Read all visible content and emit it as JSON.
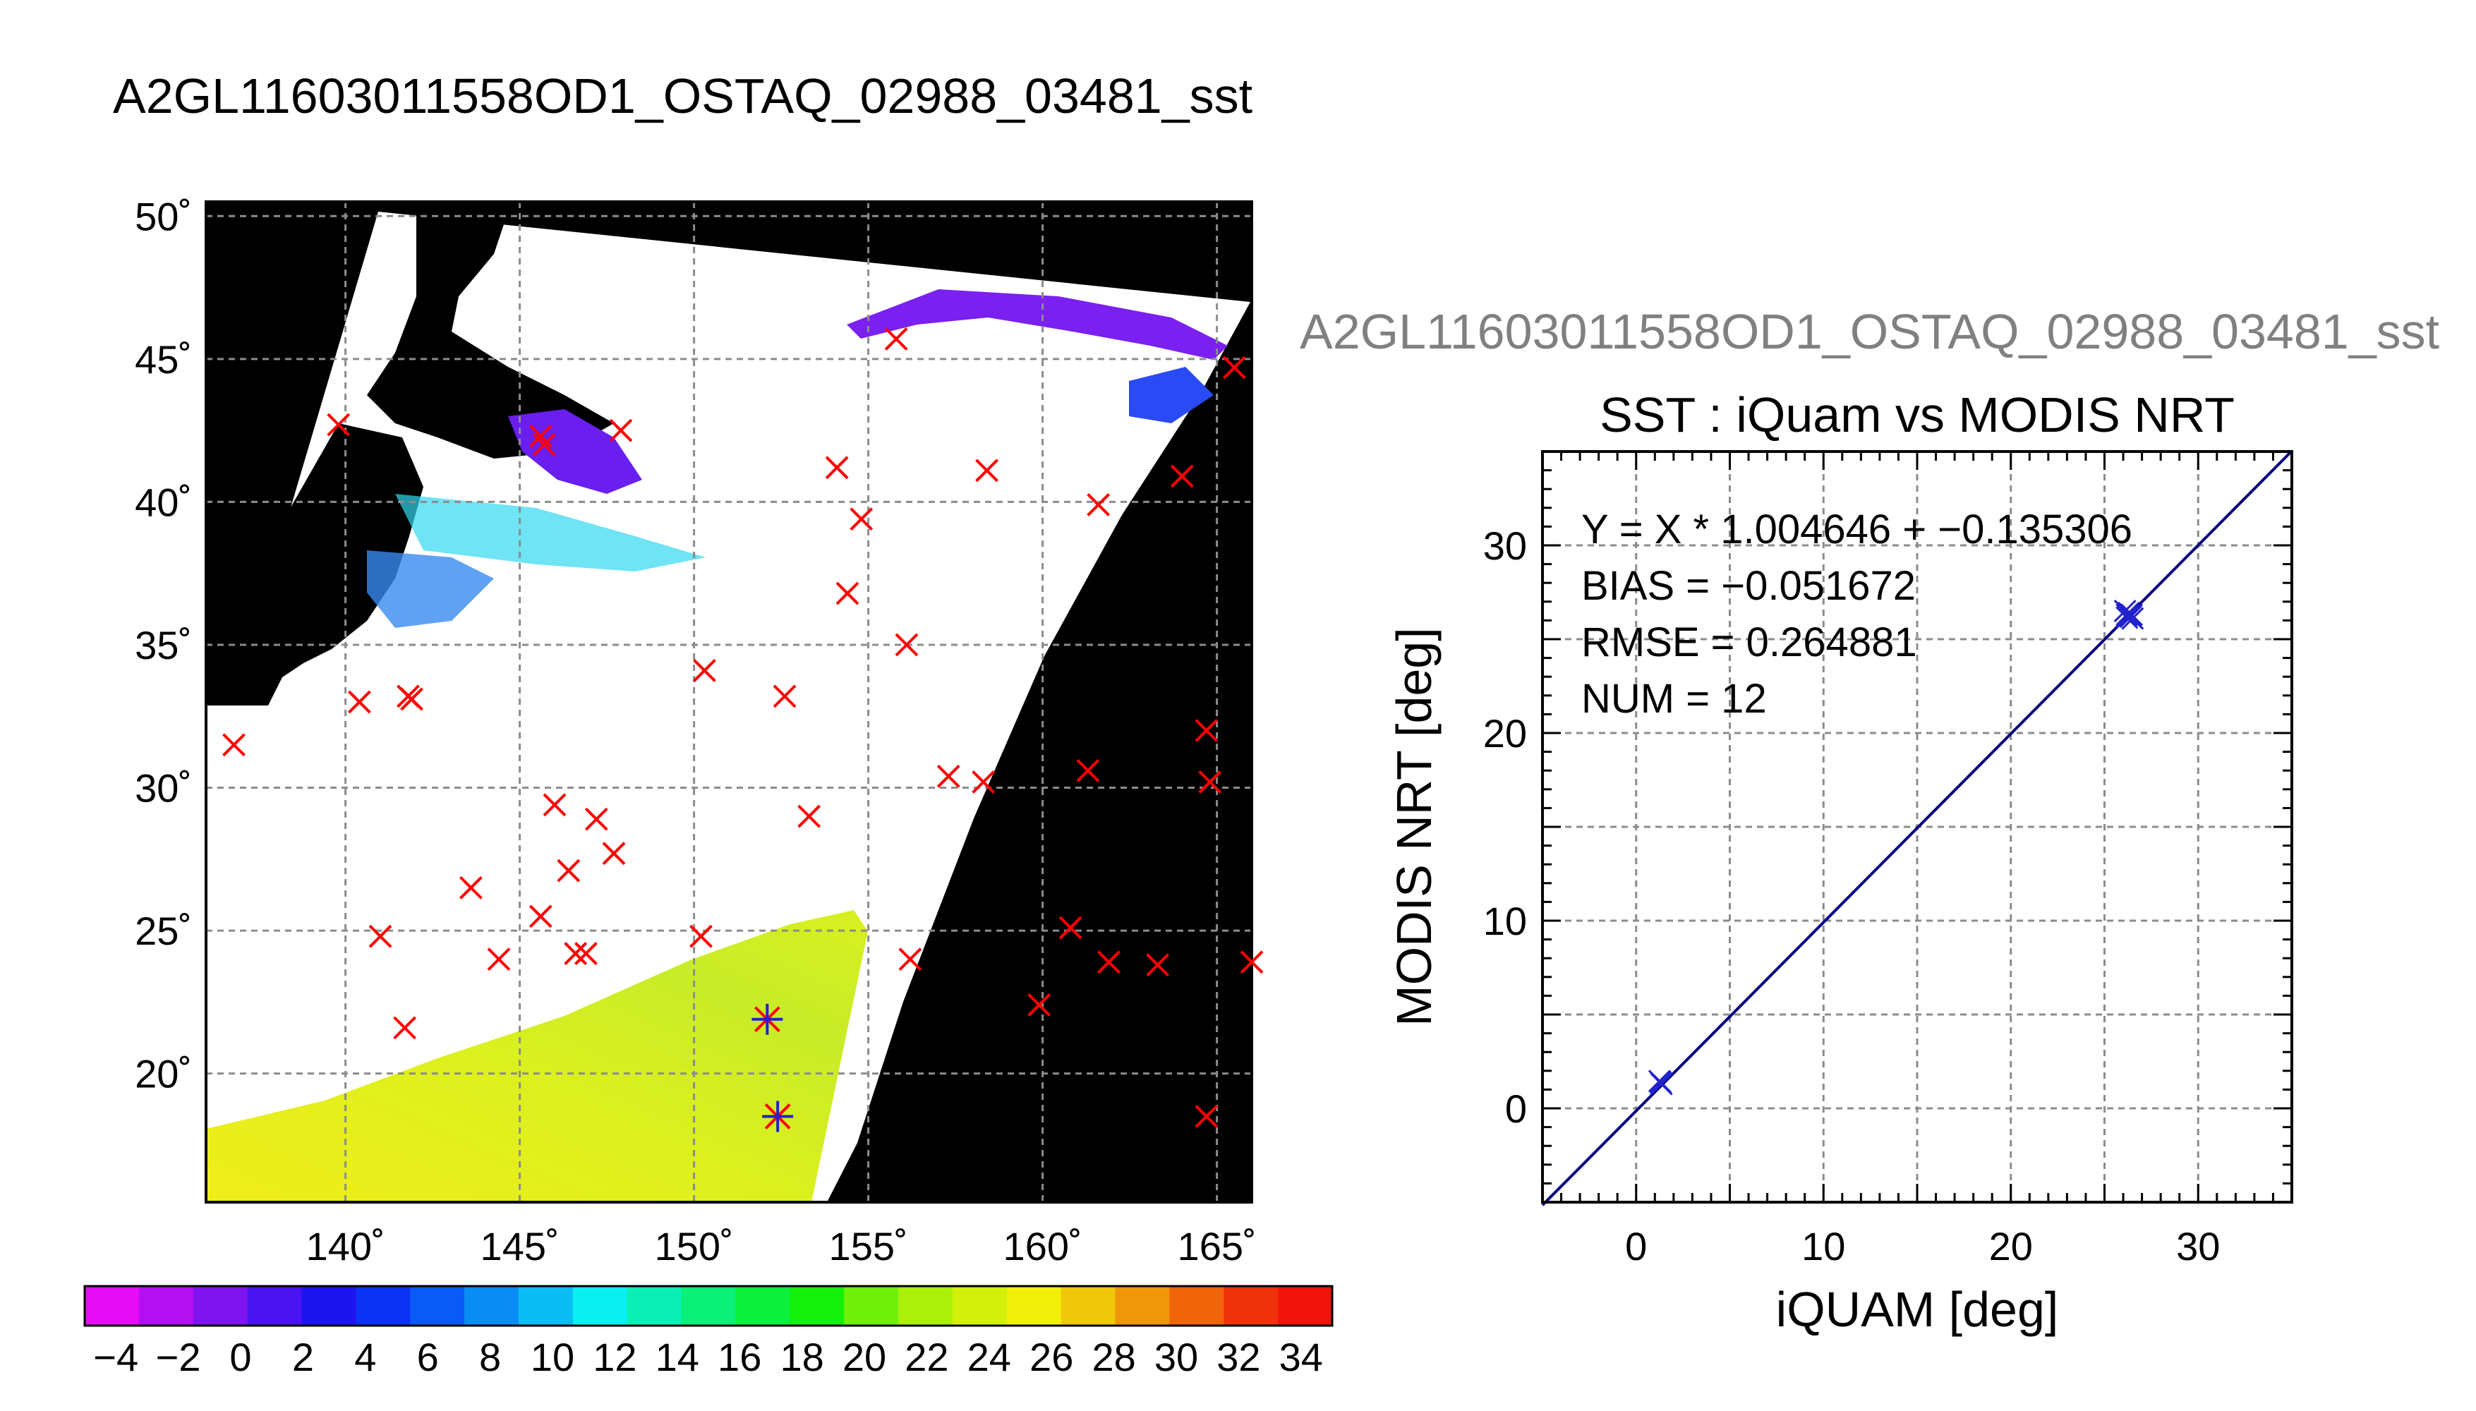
{
  "main_title": "A2GL11603011558OD1_OSTAQ_02988_03481_sst",
  "colors": {
    "land": "#000000",
    "ocean_clear": "#ffffff",
    "match_marker": "#ff0000",
    "valid_marker": "#2222cc",
    "fit_line": "#000080",
    "grid": "#808080"
  },
  "chart_data": [
    {
      "type": "scatter",
      "name_label": "",
      "xlim": [
        136,
        166
      ],
      "ylim": [
        15.5,
        50.5
      ],
      "x_ticks": [
        140,
        145,
        150,
        155,
        160,
        165
      ],
      "x_tick_labels": [
        "140˚",
        "145˚",
        "150˚",
        "155˚",
        "160˚",
        "165˚"
      ],
      "y_ticks": [
        20,
        25,
        30,
        35,
        40,
        45,
        50
      ],
      "y_tick_labels": [
        "20˚",
        "25˚",
        "30˚",
        "35˚",
        "40˚",
        "45˚",
        "50˚"
      ],
      "grid": true,
      "matchups_rejected": [
        [
          136.8,
          31.5
        ],
        [
          139.8,
          42.7
        ],
        [
          140.4,
          33.0
        ],
        [
          141.9,
          33.1
        ],
        [
          141.8,
          33.2
        ],
        [
          141.0,
          24.8
        ],
        [
          141.7,
          21.6
        ],
        [
          143.6,
          26.5
        ],
        [
          144.4,
          24.0
        ],
        [
          145.6,
          25.5
        ],
        [
          146.0,
          29.4
        ],
        [
          146.4,
          27.1
        ],
        [
          146.6,
          24.2
        ],
        [
          146.9,
          24.2
        ],
        [
          147.2,
          28.9
        ],
        [
          147.7,
          27.7
        ],
        [
          145.7,
          42.0
        ],
        [
          145.6,
          42.3
        ],
        [
          147.9,
          42.5
        ],
        [
          150.2,
          24.8
        ],
        [
          150.3,
          34.1
        ],
        [
          152.6,
          33.2
        ],
        [
          153.3,
          29.0
        ],
        [
          154.1,
          41.2
        ],
        [
          154.4,
          36.8
        ],
        [
          154.8,
          39.4
        ],
        [
          155.8,
          45.7
        ],
        [
          156.1,
          35.0
        ],
        [
          156.2,
          24.0
        ],
        [
          157.3,
          30.4
        ],
        [
          158.3,
          30.2
        ],
        [
          158.4,
          41.1
        ],
        [
          159.9,
          22.4
        ],
        [
          160.8,
          25.1
        ],
        [
          161.3,
          30.6
        ],
        [
          161.6,
          39.9
        ],
        [
          161.9,
          23.9
        ],
        [
          163.3,
          23.8
        ],
        [
          164.0,
          40.9
        ],
        [
          164.7,
          32.0
        ],
        [
          164.8,
          30.2
        ],
        [
          164.7,
          18.5
        ],
        [
          165.5,
          44.7
        ],
        [
          166.0,
          23.9
        ]
      ],
      "matchups_valid": [
        [
          152.1,
          21.9
        ],
        [
          152.4,
          18.5
        ]
      ]
    },
    {
      "type": "scatter",
      "title": "SST : iQuam vs MODIS NRT",
      "subtitle": "A2GL11603011558OD1_OSTAQ_02988_03481_sst",
      "xlabel": "iQUAM [deg]",
      "ylabel": "MODIS NRT [deg]",
      "xlim": [
        -5,
        35
      ],
      "ylim": [
        -5,
        35
      ],
      "x_ticks": [
        0,
        10,
        20,
        30
      ],
      "x_tick_labels": [
        "0",
        "10",
        "20",
        "30"
      ],
      "y_ticks": [
        0,
        10,
        20,
        30
      ],
      "y_tick_labels": [
        "0",
        "10",
        "20",
        "30"
      ],
      "grid": true,
      "annotations": [
        "Y = X * 1.004646 + −0.135306",
        "BIAS = −0.051672",
        "RMSE = 0.264881",
        "NUM = 12"
      ],
      "fit": {
        "slope": 1.004646,
        "intercept": -0.135306
      },
      "points": [
        [
          1.3,
          1.4
        ],
        [
          1.35,
          1.3
        ],
        [
          1.25,
          1.45
        ],
        [
          26.2,
          26.3
        ],
        [
          26.4,
          26.2
        ],
        [
          26.3,
          26.4
        ],
        [
          26.5,
          26.1
        ],
        [
          26.1,
          26.5
        ],
        [
          26.35,
          26.25
        ],
        [
          26.25,
          26.35
        ],
        [
          26.45,
          26.3
        ],
        [
          26.2,
          26.15
        ]
      ]
    },
    {
      "type": "colorbar",
      "range": [
        -5,
        35
      ],
      "tick_values": [
        -4,
        -2,
        0,
        2,
        4,
        6,
        8,
        10,
        12,
        14,
        16,
        18,
        20,
        22,
        24,
        26,
        28,
        30,
        32,
        34
      ],
      "tick_labels": [
        "−4",
        "−2",
        "0",
        "2",
        "4",
        "6",
        "8",
        "10",
        "12",
        "14",
        "16",
        "18",
        "20",
        "22",
        "24",
        "26",
        "28",
        "30",
        "32",
        "34"
      ],
      "colors": [
        "#e60cf5",
        "#b40ff0",
        "#8014f0",
        "#4a14f0",
        "#1e14f0",
        "#0a32f5",
        "#0a5af5",
        "#0a8cf5",
        "#0abef5",
        "#0af0f0",
        "#0af0b4",
        "#0af078",
        "#0af03c",
        "#14f00a",
        "#6ef00a",
        "#aaf00a",
        "#d2f00a",
        "#f0f00a",
        "#f0c80a",
        "#f0960a",
        "#f0640a",
        "#f0320a",
        "#f0140a"
      ]
    }
  ]
}
